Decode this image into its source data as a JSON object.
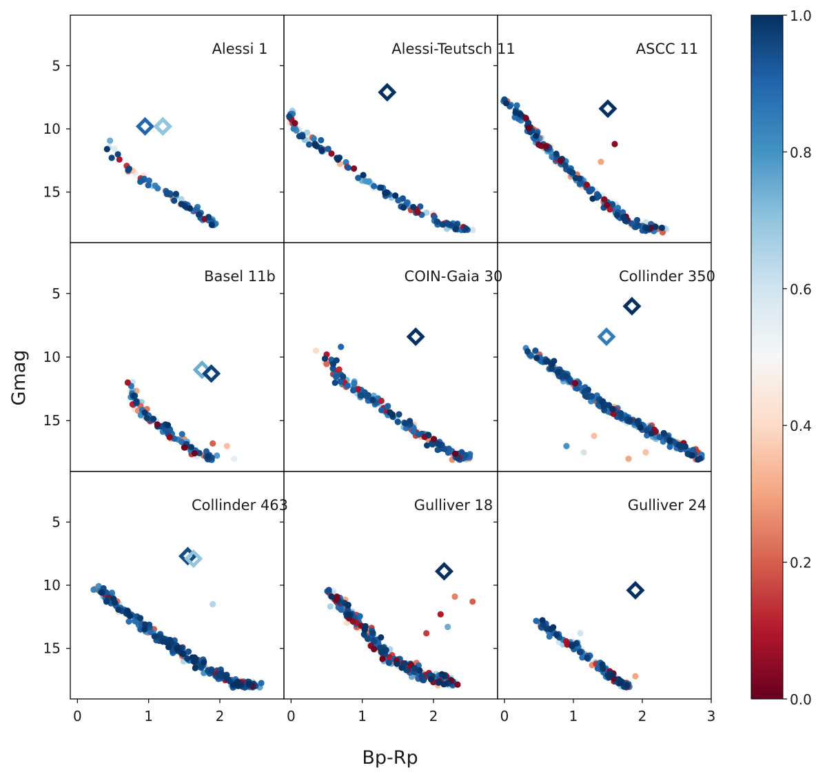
{
  "chart_data": {
    "type": "scatter",
    "xlabel": "Bp-Rp",
    "ylabel": "Gmag",
    "ylim": [
      19,
      1
    ],
    "y_inverted": true,
    "y_ticks": [
      5,
      10,
      15
    ],
    "x_ticks_by_column": [
      [
        0,
        1,
        2
      ],
      [
        0,
        1,
        2
      ],
      [
        0,
        1,
        2,
        3
      ]
    ],
    "column_xlims": [
      [
        -0.1,
        2.9
      ],
      [
        -0.1,
        2.9
      ],
      [
        -0.1,
        3.0
      ]
    ],
    "colorbar": {
      "min": 0.0,
      "max": 1.0,
      "ticks": [
        "0.0",
        "0.2",
        "0.4",
        "0.6",
        "0.8",
        "1.0"
      ],
      "colormap": "RdBu",
      "stops": [
        "#67001f",
        "#b2182b",
        "#d6604d",
        "#f4a582",
        "#fddbc7",
        "#f7f7f7",
        "#d1e5f0",
        "#92c5de",
        "#4393c3",
        "#2166ac",
        "#053061"
      ]
    },
    "panels": [
      {
        "title": "Alessi 1",
        "highlight": [
          {
            "x": 0.95,
            "y": 9.8,
            "c": 0.9
          },
          {
            "x": 1.2,
            "y": 9.8,
            "c": 0.95
          },
          {
            "x": 1.2,
            "y": 9.8,
            "c": 0.7
          }
        ],
        "sequence": [
          [
            0.35,
            10.8
          ],
          [
            0.6,
            12.5
          ],
          [
            0.9,
            14.0
          ],
          [
            1.3,
            15.2
          ],
          [
            1.7,
            16.6
          ],
          [
            2.0,
            17.8
          ]
        ],
        "n": 70,
        "spread": 0.35,
        "cmix": [
          0.55,
          0.25,
          0.2
        ],
        "ymax": 18.0,
        "field": []
      },
      {
        "title": "Alessi-Teutsch 11",
        "highlight": [
          {
            "x": 1.35,
            "y": 7.1,
            "c": 1.0
          }
        ],
        "sequence": [
          [
            0.0,
            8.5
          ],
          [
            0.05,
            10.0
          ],
          [
            0.4,
            11.5
          ],
          [
            1.0,
            13.8
          ],
          [
            1.6,
            16.0
          ],
          [
            2.2,
            17.6
          ],
          [
            2.5,
            18.0
          ]
        ],
        "n": 140,
        "spread": 0.3,
        "cmix": [
          0.6,
          0.28,
          0.12
        ],
        "ymax": 18.0,
        "field": [
          [
            2.55,
            18.0,
            0.6
          ]
        ]
      },
      {
        "title": "ASCC 11",
        "highlight": [
          {
            "x": 1.5,
            "y": 8.4,
            "c": 1.0
          }
        ],
        "sequence": [
          [
            0.0,
            7.6
          ],
          [
            0.3,
            9.5
          ],
          [
            0.6,
            11.5
          ],
          [
            1.0,
            13.5
          ],
          [
            1.35,
            15.5
          ],
          [
            1.8,
            17.3
          ],
          [
            2.3,
            18.1
          ]
        ],
        "n": 240,
        "spread": 0.35,
        "cmix": [
          0.45,
          0.25,
          0.3
        ],
        "ymax": 18.2,
        "field": [
          [
            1.6,
            11.2,
            0.05
          ],
          [
            1.4,
            12.6,
            0.3
          ]
        ]
      },
      {
        "title": "Basel 11b",
        "highlight": [
          {
            "x": 1.75,
            "y": 11.0,
            "c": 0.75
          },
          {
            "x": 1.88,
            "y": 11.3,
            "c": 0.97
          }
        ],
        "sequence": [
          [
            0.75,
            11.9
          ],
          [
            0.8,
            13.4
          ],
          [
            1.0,
            14.8
          ],
          [
            1.3,
            16.0
          ],
          [
            1.6,
            17.3
          ],
          [
            1.9,
            18.0
          ]
        ],
        "n": 110,
        "spread": 0.3,
        "cmix": [
          0.4,
          0.3,
          0.3
        ],
        "ymax": 18.1,
        "field": [
          [
            2.1,
            17.0,
            0.35
          ],
          [
            1.9,
            16.8,
            0.2
          ],
          [
            2.2,
            18.0,
            0.55
          ]
        ]
      },
      {
        "title": "COIN-Gaia 30",
        "highlight": [
          {
            "x": 1.75,
            "y": 8.4,
            "c": 1.0
          }
        ],
        "sequence": [
          [
            0.5,
            10.0
          ],
          [
            0.7,
            11.8
          ],
          [
            1.1,
            13.2
          ],
          [
            1.5,
            14.8
          ],
          [
            1.9,
            16.3
          ],
          [
            2.3,
            17.7
          ],
          [
            2.5,
            17.9
          ]
        ],
        "n": 200,
        "spread": 0.35,
        "cmix": [
          0.5,
          0.25,
          0.25
        ],
        "ymax": 18.1,
        "field": [
          [
            0.35,
            9.5,
            0.4
          ],
          [
            0.5,
            9.8,
            0.1
          ],
          [
            0.7,
            9.2,
            0.9
          ],
          [
            2.5,
            17.9,
            0.6
          ]
        ]
      },
      {
        "title": "Collinder 350",
        "highlight": [
          {
            "x": 1.85,
            "y": 6.0,
            "c": 1.0
          },
          {
            "x": 1.48,
            "y": 8.4,
            "c": 0.85
          }
        ],
        "sequence": [
          [
            0.35,
            9.5
          ],
          [
            0.7,
            10.8
          ],
          [
            1.1,
            12.5
          ],
          [
            1.5,
            14.0
          ],
          [
            2.0,
            15.5
          ],
          [
            2.5,
            16.9
          ],
          [
            2.85,
            17.9
          ]
        ],
        "n": 290,
        "spread": 0.35,
        "cmix": [
          0.58,
          0.25,
          0.17
        ],
        "ymax": 18.2,
        "field": [
          [
            0.9,
            17.0,
            0.8
          ],
          [
            1.15,
            17.5,
            0.6
          ],
          [
            1.3,
            16.2,
            0.35
          ],
          [
            1.8,
            18.0,
            0.3
          ],
          [
            2.05,
            17.5,
            0.35
          ]
        ]
      },
      {
        "title": "Collinder 463",
        "highlight": [
          {
            "x": 1.55,
            "y": 7.7,
            "c": 0.95
          },
          {
            "x": 1.63,
            "y": 7.9,
            "c": 0.7
          }
        ],
        "sequence": [
          [
            0.3,
            10.2
          ],
          [
            0.6,
            11.8
          ],
          [
            1.0,
            13.5
          ],
          [
            1.4,
            15.0
          ],
          [
            1.8,
            16.6
          ],
          [
            2.2,
            17.8
          ],
          [
            2.5,
            18.0
          ]
        ],
        "n": 330,
        "spread": 0.35,
        "cmix": [
          0.6,
          0.25,
          0.15
        ],
        "ymax": 18.1,
        "field": [
          [
            1.9,
            11.5,
            0.65
          ],
          [
            2.45,
            18.0,
            0.6
          ]
        ]
      },
      {
        "title": "Gulliver 18",
        "highlight": [
          {
            "x": 2.15,
            "y": 8.9,
            "c": 1.0
          }
        ],
        "sequence": [
          [
            0.55,
            10.5
          ],
          [
            0.8,
            12.2
          ],
          [
            1.1,
            14.0
          ],
          [
            1.4,
            15.8
          ],
          [
            1.8,
            17.0
          ],
          [
            2.3,
            17.8
          ]
        ],
        "n": 280,
        "spread": 0.45,
        "cmix": [
          0.4,
          0.2,
          0.4
        ],
        "ymax": 18.2,
        "field": [
          [
            2.3,
            10.9,
            0.25
          ],
          [
            2.55,
            11.3,
            0.2
          ],
          [
            2.1,
            12.3,
            0.1
          ],
          [
            2.2,
            13.3,
            0.75
          ],
          [
            1.9,
            13.8,
            0.15
          ]
        ]
      },
      {
        "title": "Gulliver 24",
        "highlight": [
          {
            "x": 1.9,
            "y": 10.4,
            "c": 1.0
          }
        ],
        "sequence": [
          [
            0.5,
            12.8
          ],
          [
            0.7,
            13.8
          ],
          [
            1.0,
            14.8
          ],
          [
            1.3,
            16.0
          ],
          [
            1.5,
            17.0
          ],
          [
            1.7,
            17.8
          ],
          [
            1.8,
            18.0
          ]
        ],
        "n": 160,
        "spread": 0.3,
        "cmix": [
          0.5,
          0.3,
          0.2
        ],
        "ymax": 18.1,
        "field": [
          [
            1.9,
            17.2,
            0.3
          ],
          [
            1.1,
            13.8,
            0.6
          ]
        ]
      }
    ]
  }
}
